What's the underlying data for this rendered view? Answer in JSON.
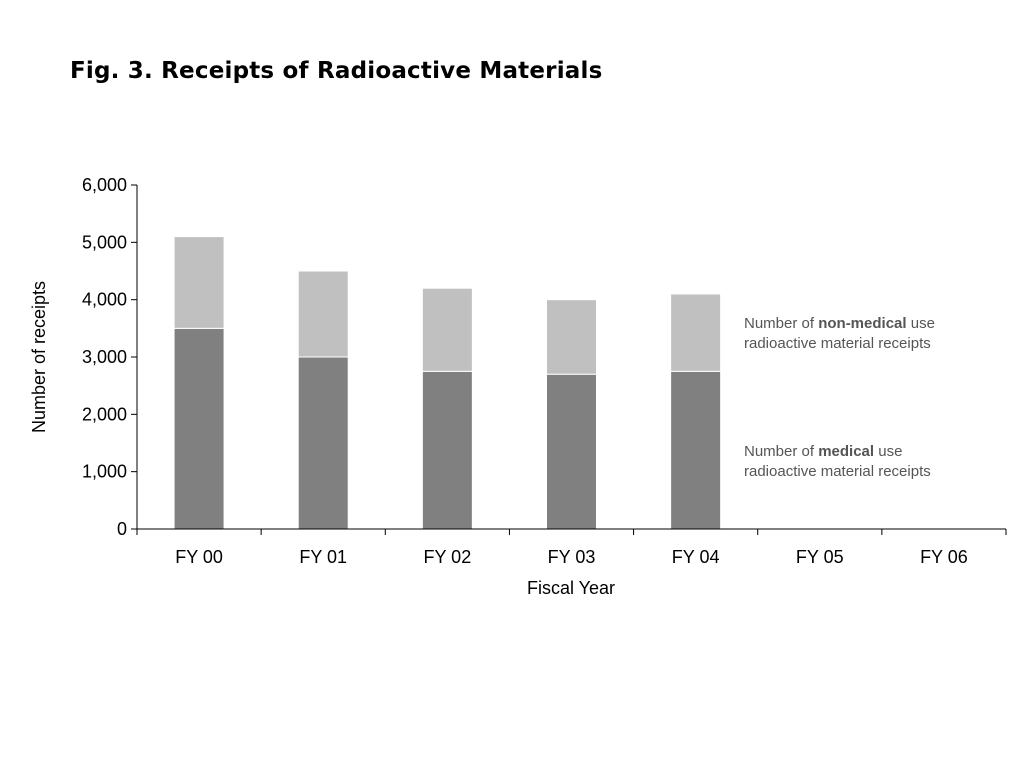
{
  "title": "Fig. 3.  Receipts of Radioactive Materials",
  "chart_data": {
    "type": "bar",
    "stacked": true,
    "categories": [
      "FY 00",
      "FY 01",
      "FY 02",
      "FY 03",
      "FY 04",
      "FY 05",
      "FY 06"
    ],
    "series": [
      {
        "label_prefix": "Number of ",
        "label_bold": "medical",
        "label_suffix_1": " use",
        "label_suffix_2": "radioactive material receipts",
        "color": "#808080",
        "values": [
          3500,
          3000,
          2750,
          2700,
          2750,
          null,
          null
        ]
      },
      {
        "label_prefix": "Number of ",
        "label_bold": "non-medical",
        "label_suffix_1": " use",
        "label_suffix_2": "radioactive material receipts",
        "color": "#c0c0c0",
        "values": [
          1600,
          1500,
          1450,
          1300,
          1350,
          null,
          null
        ]
      }
    ],
    "yticks": [
      "0",
      "1,000",
      "2,000",
      "3,000",
      "4,000",
      "5,000",
      "6,000"
    ],
    "ylim": [
      0,
      6000
    ],
    "xlabel": "Fiscal Year",
    "ylabel": "Number of receipts",
    "grid": false,
    "legend_placement": "right"
  }
}
